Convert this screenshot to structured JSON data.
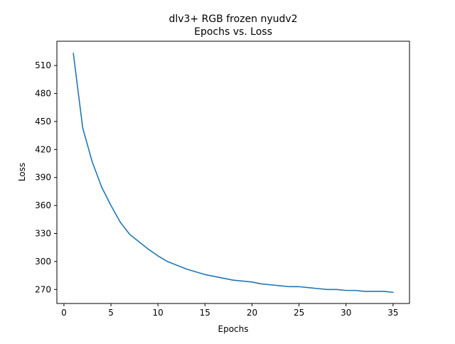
{
  "chart_data": {
    "type": "line",
    "title_line1": "dlv3+ RGB frozen nyudv2",
    "title_line2": "Epochs vs. Loss",
    "xlabel": "Epochs",
    "ylabel": "Loss",
    "xlim": [
      -0.75,
      36.75
    ],
    "ylim": [
      255,
      536
    ],
    "xticks": [
      0,
      5,
      10,
      15,
      20,
      25,
      30,
      35
    ],
    "yticks": [
      270,
      300,
      330,
      360,
      390,
      420,
      450,
      480,
      510
    ],
    "grid": false,
    "line_color": "#1f77b4",
    "series": [
      {
        "x": [
          1,
          2,
          3,
          4,
          5,
          6,
          7,
          8,
          9,
          10,
          11,
          12,
          13,
          14,
          15,
          16,
          17,
          18,
          19,
          20,
          21,
          22,
          23,
          24,
          25,
          26,
          27,
          28,
          29,
          30,
          31,
          32,
          33,
          34,
          35
        ],
        "values": [
          523,
          443,
          407,
          380,
          360,
          342,
          329,
          321,
          313,
          306,
          300,
          296,
          292,
          289,
          286,
          284,
          282,
          280,
          279,
          278,
          276,
          275,
          274,
          273,
          273,
          272,
          271,
          270,
          270,
          269,
          269,
          268,
          268,
          268,
          267
        ]
      }
    ]
  }
}
